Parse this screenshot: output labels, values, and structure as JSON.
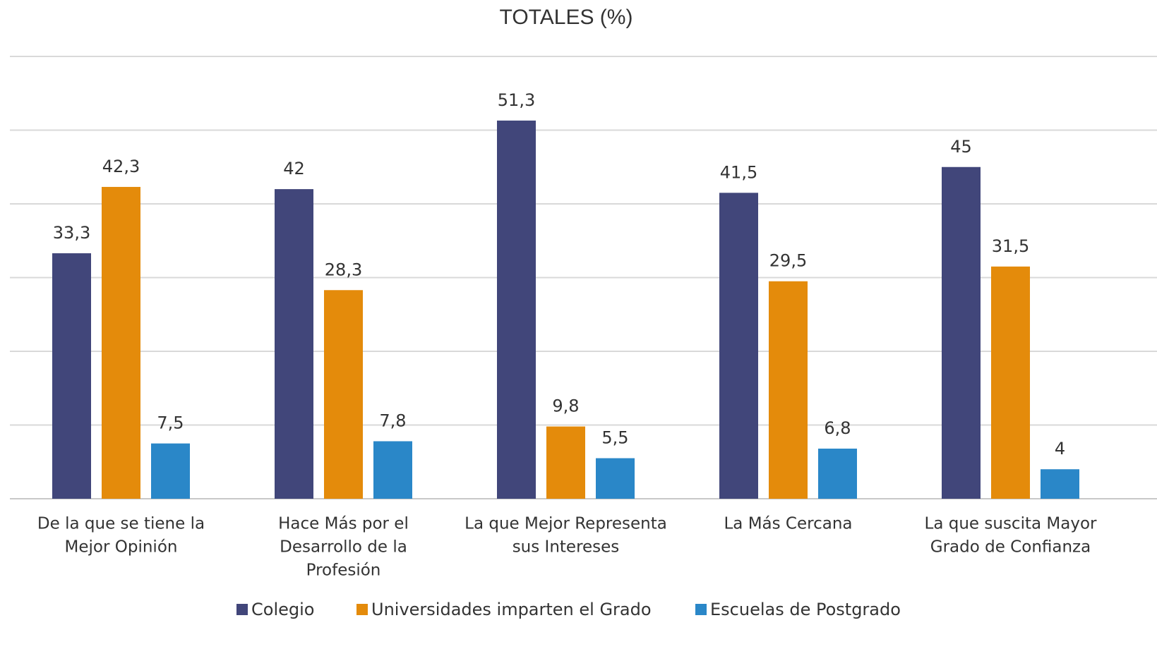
{
  "chart_data": {
    "type": "bar",
    "title": "TOTALES (%)",
    "categories": [
      [
        "De la que se  tiene la",
        "Mejor Opinión"
      ],
      [
        "Hace Más por el",
        "Desarrollo de la",
        "Profesión"
      ],
      [
        "La que Mejor Representa",
        "sus Intereses"
      ],
      [
        "La Más Cercana"
      ],
      [
        "La que suscita Mayor",
        "Grado de Confianza"
      ]
    ],
    "series": [
      {
        "name": "Colegio",
        "color": "#41467a",
        "values": [
          33.3,
          42,
          51.3,
          41.5,
          45
        ],
        "value_labels": [
          "33,3",
          "42",
          "51,3",
          "41,5",
          "45"
        ]
      },
      {
        "name": "Universidades imparten el Grado",
        "color": "#e48b0b",
        "values": [
          42.3,
          28.3,
          9.8,
          29.5,
          31.5
        ],
        "value_labels": [
          "42,3",
          "28,3",
          "9,8",
          "29,5",
          "31,5"
        ]
      },
      {
        "name": "Escuelas de Postgrado",
        "color": "#2a87c8",
        "values": [
          7.5,
          7.8,
          5.5,
          6.8,
          4
        ],
        "value_labels": [
          "7,5",
          "7,8",
          "5,5",
          "6,8",
          "4"
        ]
      }
    ],
    "ylim": [
      0,
      60
    ],
    "yticks": [
      0,
      10,
      20,
      30,
      40,
      50,
      60
    ],
    "grid": true
  }
}
